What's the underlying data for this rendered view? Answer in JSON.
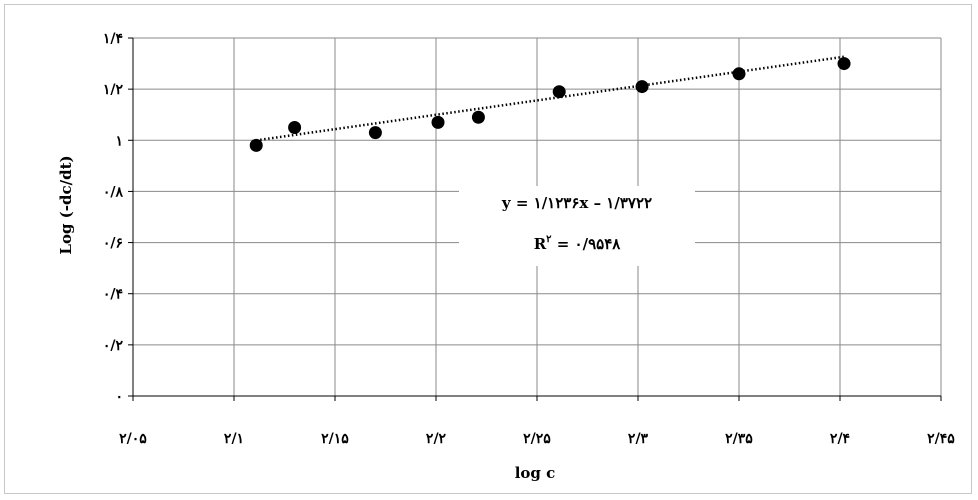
{
  "chart_data": {
    "type": "scatter",
    "xlabel": "log c",
    "ylabel": "Log (-dc/dt)",
    "xlim": [
      2.05,
      2.45
    ],
    "ylim": [
      0,
      1.4
    ],
    "grid": true,
    "x_ticks": [
      {
        "value": 2.05,
        "label": "۲/۰۵"
      },
      {
        "value": 2.1,
        "label": "۲/۱"
      },
      {
        "value": 2.15,
        "label": "۲/۱۵"
      },
      {
        "value": 2.2,
        "label": "۲/۲"
      },
      {
        "value": 2.25,
        "label": "۲/۲۵"
      },
      {
        "value": 2.3,
        "label": "۲/۳"
      },
      {
        "value": 2.35,
        "label": "۲/۳۵"
      },
      {
        "value": 2.4,
        "label": "۲/۴"
      },
      {
        "value": 2.45,
        "label": "۲/۴۵"
      }
    ],
    "y_ticks": [
      {
        "value": 0,
        "label": "۰"
      },
      {
        "value": 0.2,
        "label": "۰/۲"
      },
      {
        "value": 0.4,
        "label": "۰/۴"
      },
      {
        "value": 0.6,
        "label": "۰/۶"
      },
      {
        "value": 0.8,
        "label": "۰/۸"
      },
      {
        "value": 1.0,
        "label": "۱"
      },
      {
        "value": 1.2,
        "label": "۱/۲"
      },
      {
        "value": 1.4,
        "label": "۱/۴"
      }
    ],
    "series": [
      {
        "x": [
          2.111,
          2.13,
          2.17,
          2.201,
          2.221,
          2.261,
          2.302,
          2.35,
          2.402
        ],
        "y": [
          0.98,
          1.05,
          1.03,
          1.07,
          1.09,
          1.19,
          1.21,
          1.26,
          1.3
        ],
        "color": "#000000"
      }
    ],
    "trendline": {
      "type": "linear",
      "slope": 1.1236,
      "intercept": -1.3722,
      "x_range": [
        2.111,
        2.402
      ],
      "style": "dotted"
    },
    "annotations": {
      "equation": "y = ۱/۱۲۳۶x – ۱/۳۷۲۲",
      "r2_prefix": "R",
      "r2_sup": "۲",
      "r2_value": " = ۰/۹۵۴۸"
    }
  }
}
